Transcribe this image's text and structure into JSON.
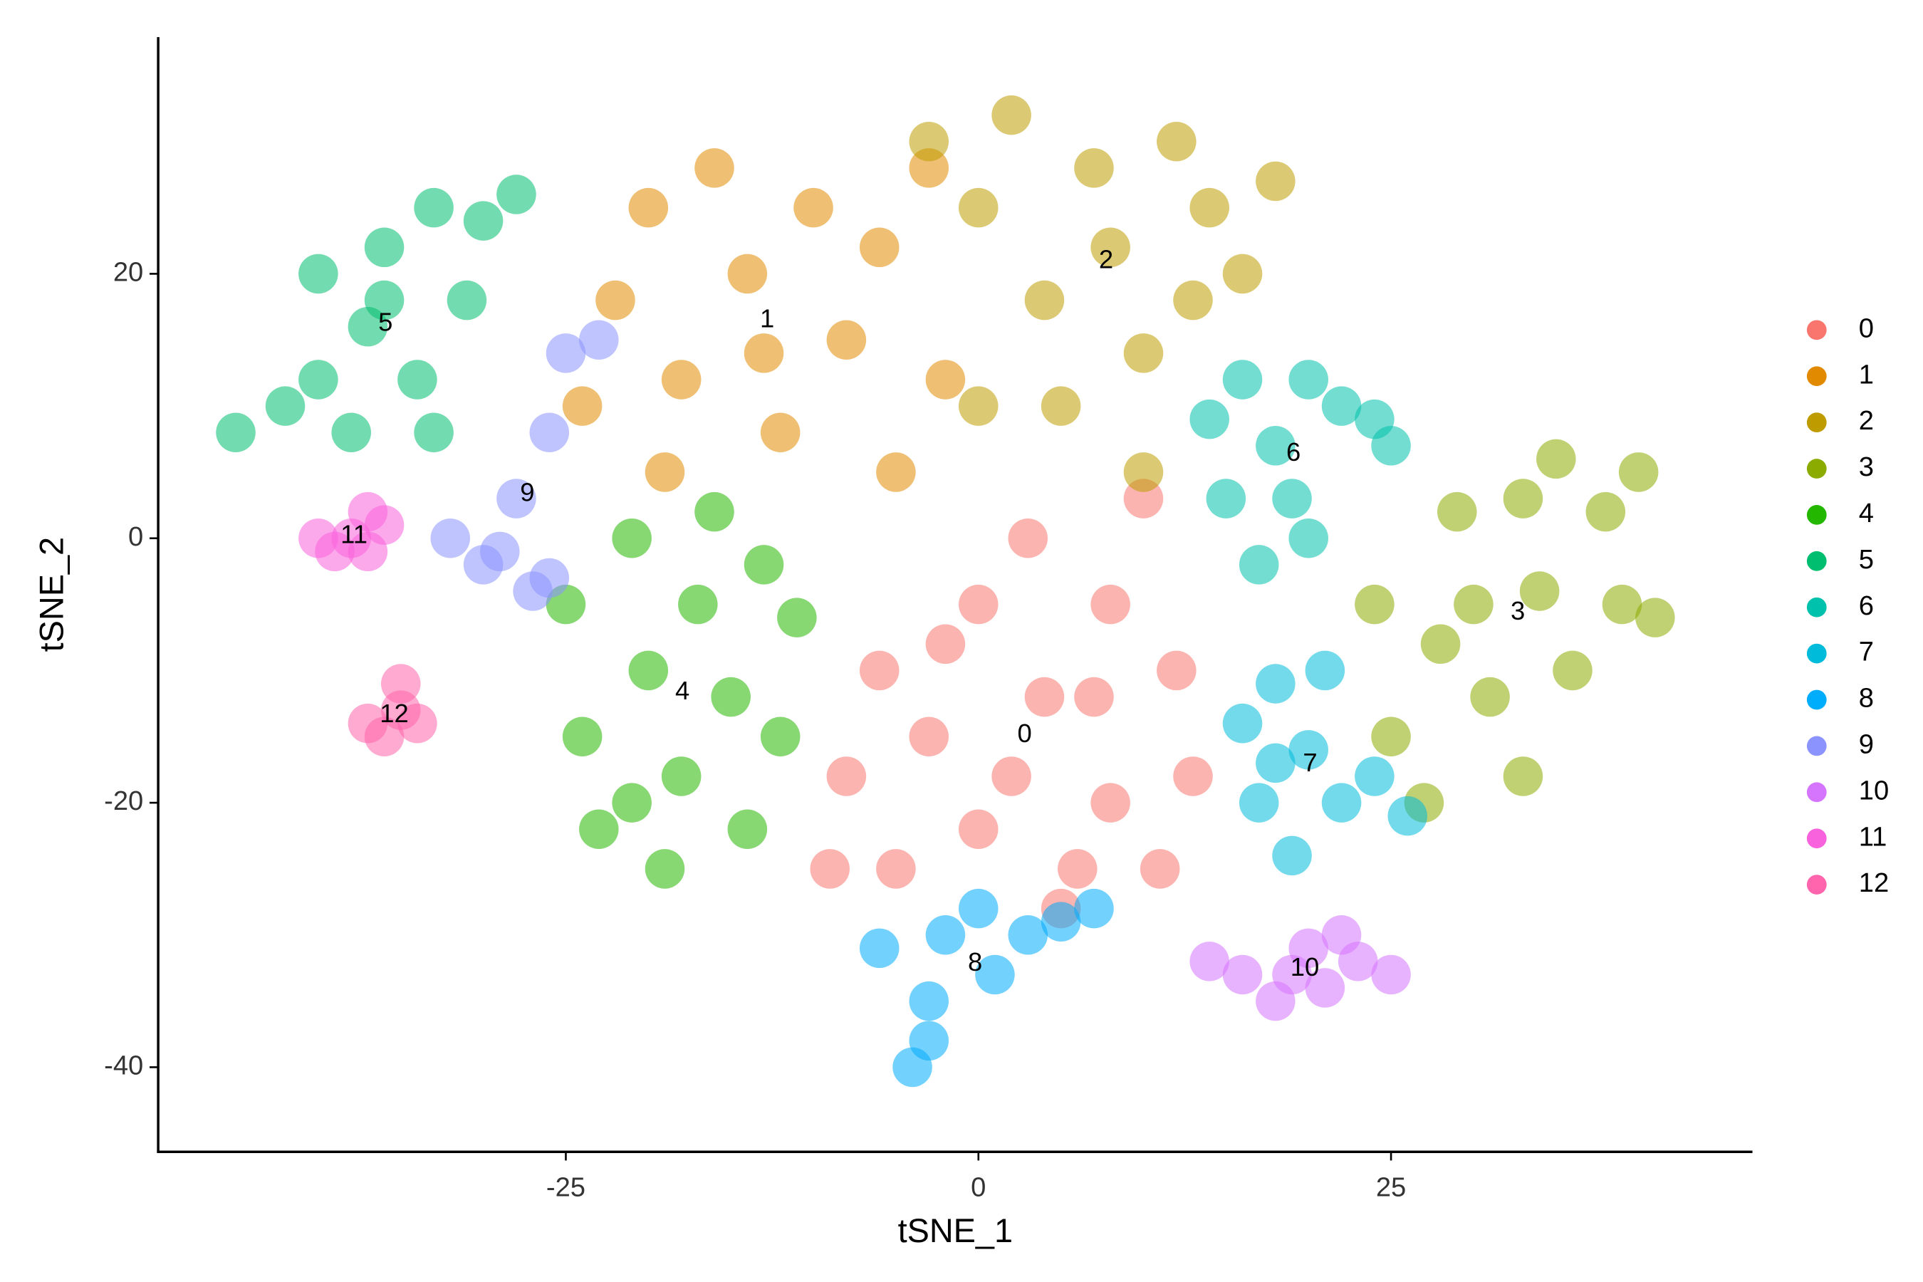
{
  "chart_data": {
    "type": "scatter",
    "x_label": "tSNE_1",
    "y_label": "tSNE_2",
    "xlim": [
      -49.7,
      46.9
    ],
    "ylim": [
      -46.4,
      37.9
    ],
    "xticks": [
      -25,
      0,
      25
    ],
    "yticks": [
      -40,
      -20,
      0,
      20
    ],
    "grid": false,
    "legend": "right",
    "series": [
      {
        "name": "0",
        "color": "#F8766D",
        "x": [
          -8,
          -5,
          -3,
          0,
          0,
          3,
          4,
          5,
          8,
          8,
          10,
          12,
          13,
          -2,
          6,
          -9,
          2,
          11,
          -6,
          7
        ],
        "values": [
          -18,
          -25,
          -15,
          -5,
          -22,
          0,
          -12,
          -28,
          -20,
          -5,
          3,
          -10,
          -18,
          -8,
          -25,
          -25,
          -18,
          -25,
          -10,
          -12
        ]
      },
      {
        "name": "1",
        "color": "#E18A00",
        "x": [
          -24,
          -22,
          -20,
          -18,
          -16,
          -14,
          -12,
          -10,
          -8,
          -6,
          -5,
          -3,
          -2,
          -19,
          -13
        ],
        "values": [
          10,
          18,
          25,
          12,
          28,
          20,
          8,
          25,
          15,
          22,
          5,
          28,
          12,
          5,
          14
        ]
      },
      {
        "name": "2",
        "color": "#BE9C00",
        "x": [
          -3,
          0,
          2,
          4,
          5,
          7,
          8,
          10,
          12,
          14,
          16,
          18,
          0,
          10,
          13
        ],
        "values": [
          30,
          25,
          32,
          18,
          10,
          28,
          22,
          14,
          30,
          25,
          20,
          27,
          10,
          5,
          18
        ]
      },
      {
        "name": "3",
        "color": "#8CAB00",
        "x": [
          24,
          25,
          27,
          28,
          29,
          31,
          33,
          34,
          35,
          36,
          38,
          39,
          40,
          41,
          30,
          33
        ],
        "values": [
          -5,
          -15,
          -20,
          -8,
          2,
          -12,
          -18,
          -4,
          6,
          -10,
          2,
          -5,
          5,
          -6,
          -5,
          3
        ]
      },
      {
        "name": "4",
        "color": "#24B700",
        "x": [
          -25,
          -24,
          -23,
          -21,
          -20,
          -19,
          -18,
          -17,
          -16,
          -15,
          -14,
          -13,
          -12,
          -11,
          -21
        ],
        "values": [
          -5,
          -15,
          -22,
          0,
          -10,
          -25,
          -18,
          -5,
          2,
          -12,
          -22,
          -2,
          -15,
          -6,
          -20
        ]
      },
      {
        "name": "5",
        "color": "#00BE70",
        "x": [
          -45,
          -42,
          -40,
          -38,
          -40,
          -37,
          -36,
          -34,
          -33,
          -31,
          -30,
          -28,
          -33,
          -36
        ],
        "values": [
          8,
          10,
          12,
          8,
          20,
          16,
          22,
          12,
          25,
          18,
          24,
          26,
          8,
          18
        ]
      },
      {
        "name": "6",
        "color": "#00C1AB",
        "x": [
          14,
          15,
          16,
          17,
          18,
          20,
          20,
          22,
          24,
          25,
          19
        ],
        "values": [
          9,
          3,
          12,
          -2,
          7,
          12,
          0,
          10,
          9,
          7,
          3
        ]
      },
      {
        "name": "7",
        "color": "#00BBDA",
        "x": [
          16,
          17,
          18,
          19,
          20,
          21,
          22,
          24,
          26,
          18
        ],
        "values": [
          -14,
          -20,
          -11,
          -24,
          -16,
          -10,
          -20,
          -18,
          -21,
          -17
        ]
      },
      {
        "name": "8",
        "color": "#00ACFC",
        "x": [
          -4,
          -3,
          -2,
          0,
          1,
          3,
          5,
          7,
          -6,
          -3
        ],
        "values": [
          -40,
          -35,
          -30,
          -28,
          -33,
          -30,
          -29,
          -28,
          -31,
          -38
        ]
      },
      {
        "name": "9",
        "color": "#8B93FF",
        "x": [
          -32,
          -30,
          -28,
          -27,
          -29,
          -26,
          -25,
          -26,
          -23
        ],
        "values": [
          0,
          -2,
          3,
          -4,
          -1,
          8,
          14,
          -3,
          15
        ]
      },
      {
        "name": "10",
        "color": "#D575FE",
        "x": [
          14,
          16,
          18,
          20,
          21,
          23,
          25,
          22,
          19
        ],
        "values": [
          -32,
          -33,
          -35,
          -31,
          -34,
          -32,
          -33,
          -30,
          -33
        ]
      },
      {
        "name": "11",
        "color": "#F962DD",
        "x": [
          -40,
          -39,
          -38,
          -37,
          -36,
          -37
        ],
        "values": [
          0,
          -1,
          0,
          -1,
          1,
          2
        ]
      },
      {
        "name": "12",
        "color": "#FF65AC",
        "x": [
          -37,
          -36,
          -35,
          -35,
          -34
        ],
        "values": [
          -14,
          -15,
          -13,
          -11,
          -14
        ]
      }
    ]
  }
}
